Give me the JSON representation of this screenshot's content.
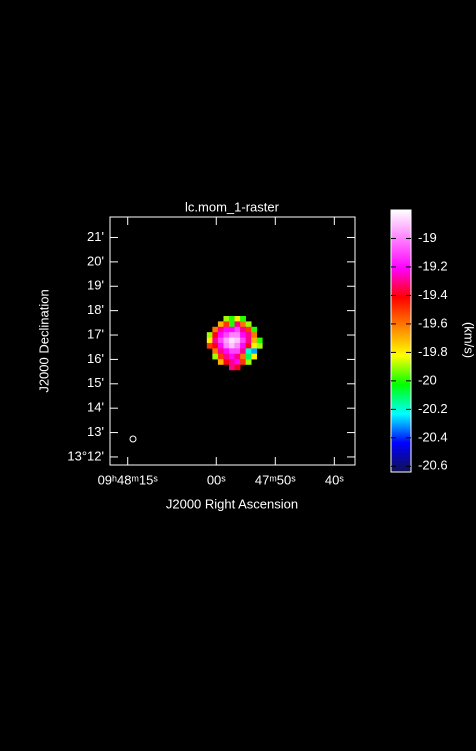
{
  "chart_data": {
    "type": "raster",
    "title": "lc.mom_1-raster",
    "x_label": "J2000 Right Ascension",
    "y_label": "J2000 Declination",
    "xlim": [
      78,
      36.5
    ],
    "xticks": [
      {
        "value": 75,
        "label": "09ʰ48ᵐ15ˢ"
      },
      {
        "value": 60,
        "label": "00ˢ"
      },
      {
        "value": 50,
        "label": "47ᵐ50ˢ"
      },
      {
        "value": 40,
        "label": "40ˢ"
      }
    ],
    "ylim": [
      11.67,
      21.84
    ],
    "yticks": [
      {
        "value": 12,
        "label": "13°12'"
      },
      {
        "value": 13,
        "label": "13'"
      },
      {
        "value": 14,
        "label": "14'"
      },
      {
        "value": 15,
        "label": "15'"
      },
      {
        "value": 16,
        "label": "16'"
      },
      {
        "value": 17,
        "label": "17'"
      },
      {
        "value": 18,
        "label": "18'"
      },
      {
        "value": 19,
        "label": "19'"
      },
      {
        "value": 20,
        "label": "20'"
      },
      {
        "value": 21,
        "label": "21'"
      }
    ],
    "raster": {
      "extent": [
        61.6,
        52.2,
        15.57,
        17.78
      ],
      "values": [
        [
          null,
          null,
          null,
          -19.9,
          -20.0,
          -19.8,
          -20.0,
          null,
          null,
          null
        ],
        [
          null,
          null,
          -19.7,
          -19.5,
          -20.0,
          -19.3,
          -19.6,
          -19.9,
          null,
          null
        ],
        [
          null,
          -19.6,
          -19.3,
          -19.2,
          -19.2,
          -19.1,
          -19.3,
          -19.5,
          -20.0,
          null
        ],
        [
          -19.9,
          -19.4,
          -19.2,
          -19.1,
          -19.0,
          -19.0,
          -19.2,
          -19.3,
          -19.6,
          null
        ],
        [
          -19.8,
          -19.3,
          -19.1,
          -18.95,
          -18.85,
          -18.9,
          -19.1,
          -19.3,
          -19.7,
          -20.0
        ],
        [
          -19.5,
          -19.4,
          -19.2,
          -19.0,
          -18.9,
          -19.0,
          -19.2,
          -19.4,
          -19.8,
          -19.9
        ],
        [
          null,
          -19.6,
          -19.3,
          -19.2,
          -19.1,
          -19.1,
          -19.3,
          -20.2,
          -20.3,
          null
        ],
        [
          null,
          -19.9,
          -19.5,
          -19.3,
          -19.2,
          -19.3,
          -19.6,
          -20.1,
          -19.8,
          null
        ],
        [
          null,
          null,
          -19.7,
          -19.4,
          -19.3,
          -19.2,
          -19.5,
          -19.9,
          null,
          null
        ],
        [
          null,
          null,
          null,
          null,
          -19.3,
          -19.4,
          null,
          null,
          null,
          null
        ]
      ]
    },
    "colorbar": {
      "label": "(km/s)",
      "clim": [
        -20.64,
        -18.8
      ],
      "ticks": [
        -19,
        -19.2,
        -19.4,
        -19.6,
        -19.8,
        -20,
        -20.2,
        -20.4,
        -20.6
      ],
      "colormap": [
        "#101050",
        "#0000ff",
        "#00ffff",
        "#00ff00",
        "#ffff00",
        "#ff8000",
        "#ff0000",
        "#ff00ff",
        "#ff80ff",
        "#ffffff"
      ]
    }
  }
}
